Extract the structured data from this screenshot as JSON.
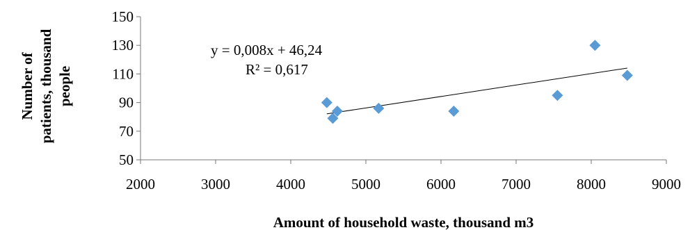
{
  "chart_data": {
    "type": "scatter",
    "xlabel": "Amount of household waste, thousand m3",
    "ylabel_lines": [
      "Number of",
      "patients, thousand",
      "people"
    ],
    "xlim": [
      2000,
      9000
    ],
    "ylim": [
      50,
      150
    ],
    "x_ticks": [
      2000,
      3000,
      4000,
      5000,
      6000,
      7000,
      8000,
      9000
    ],
    "y_ticks": [
      50,
      70,
      90,
      110,
      130,
      150
    ],
    "grid": false,
    "marker_color": "#5B9BD5",
    "points": [
      {
        "x": 4480,
        "y": 90
      },
      {
        "x": 4560,
        "y": 79
      },
      {
        "x": 4620,
        "y": 84
      },
      {
        "x": 5170,
        "y": 86
      },
      {
        "x": 6170,
        "y": 84
      },
      {
        "x": 7550,
        "y": 95
      },
      {
        "x": 8050,
        "y": 130
      },
      {
        "x": 8480,
        "y": 109
      }
    ],
    "trendline": {
      "slope": 0.008,
      "intercept": 46.24,
      "x_range": [
        4480,
        8480
      ],
      "equation": "y = 0,008x + 46,24",
      "r_squared": "R² = 0,617"
    }
  }
}
